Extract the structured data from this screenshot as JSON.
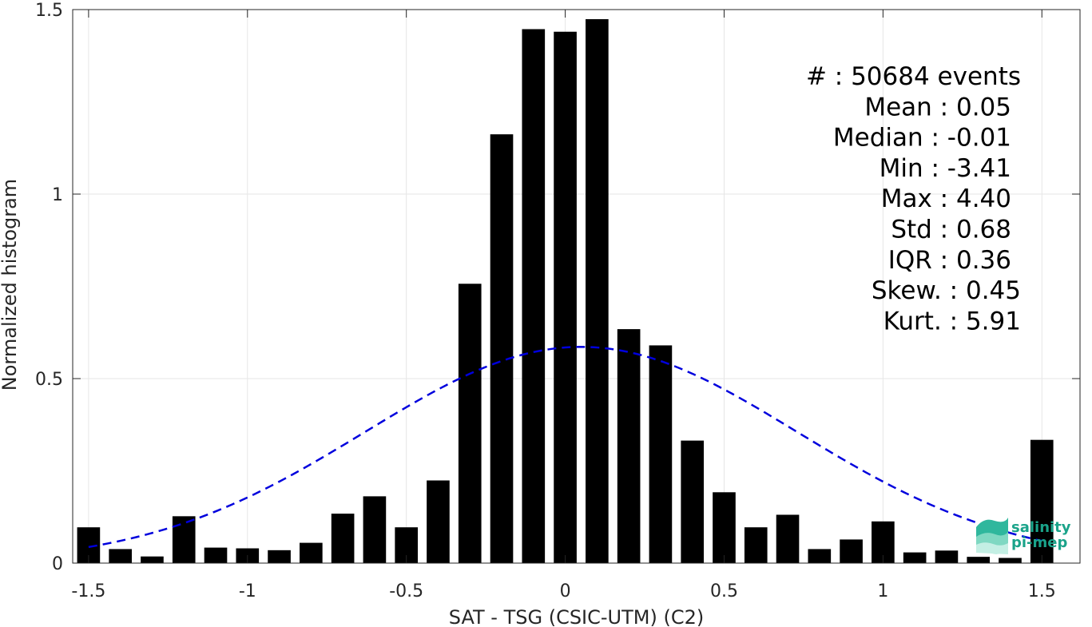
{
  "chart_data": {
    "type": "bar",
    "title": "",
    "xlabel": "SAT - TSG (CSIC-UTM) (C2)",
    "ylabel": "Normalized histogram",
    "xlim": [
      -1.55,
      1.62
    ],
    "ylim": [
      0,
      1.5
    ],
    "grid": true,
    "x_ticks": [
      -1.5,
      -1,
      -0.5,
      0,
      0.5,
      1,
      1.5
    ],
    "x_tick_labels": [
      "-1.5",
      "-1",
      "-0.5",
      "0",
      "0.5",
      "1",
      "1.5"
    ],
    "y_ticks": [
      0,
      0.5,
      1,
      1.5
    ],
    "y_tick_labels": [
      "0",
      "0.5",
      "1",
      "1.5"
    ],
    "bin_width": 0.1,
    "x": [
      -1.5,
      -1.4,
      -1.3,
      -1.2,
      -1.1,
      -1.0,
      -0.9,
      -0.8,
      -0.7,
      -0.6,
      -0.5,
      -0.4,
      -0.3,
      -0.2,
      -0.1,
      0.0,
      0.1,
      0.2,
      0.3,
      0.4,
      0.5,
      0.6,
      0.7,
      0.8,
      0.9,
      1.0,
      1.1,
      1.2,
      1.3,
      1.4,
      1.5
    ],
    "values": [
      0.097,
      0.038,
      0.018,
      0.127,
      0.042,
      0.04,
      0.035,
      0.055,
      0.134,
      0.181,
      0.097,
      0.224,
      0.757,
      1.162,
      1.447,
      1.44,
      1.474,
      0.634,
      0.59,
      0.332,
      0.192,
      0.097,
      0.131,
      0.038,
      0.064,
      0.113,
      0.029,
      0.034,
      0.017,
      0.014,
      0.334
    ],
    "bar_color": "#000000",
    "fit": {
      "type": "normal",
      "mean": 0.05,
      "std": 0.68,
      "x_range": [
        -1.5,
        1.5
      ],
      "style": "dashed",
      "color": "#0000dd"
    },
    "legend": "none"
  },
  "stats": [
    "#  : 50684 events",
    "Mean : 0.05",
    "Median : -0.01",
    "Min : -3.41",
    "Max : 4.40",
    "Std : 0.68",
    "IQR : 0.36",
    "Skew. : 0.45",
    "Kurt. : 5.91"
  ],
  "logo": {
    "line1": "salinity",
    "line2": "pi-mep",
    "color": "#1aa38a"
  }
}
